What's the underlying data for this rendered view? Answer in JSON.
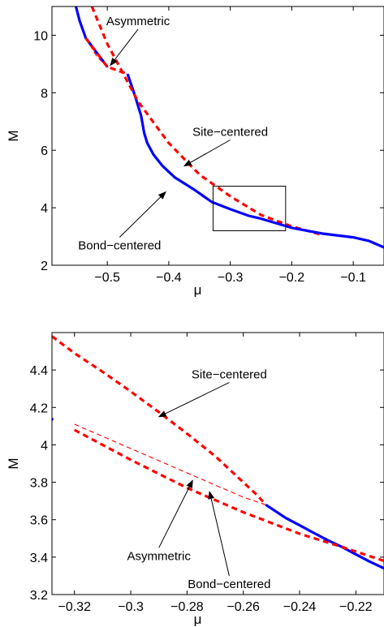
{
  "colors": {
    "stable": "#0000ff",
    "unstable": "#ff0000",
    "axis": "#000000",
    "background": "#ffffff"
  },
  "chart_data": [
    {
      "type": "line",
      "xlabel": "μ",
      "ylabel": "M",
      "xlim": [
        -0.59,
        -0.05
      ],
      "ylim": [
        2,
        11
      ],
      "xticks": [
        -0.5,
        -0.4,
        -0.3,
        -0.2,
        -0.1
      ],
      "xtick_labels": [
        "−0.5",
        "−0.4",
        "−0.3",
        "−0.2",
        "−0.1"
      ],
      "yticks": [
        2,
        4,
        6,
        8,
        10
      ],
      "ytick_labels": [
        "2",
        "4",
        "6",
        "8",
        "10"
      ],
      "grid": false,
      "inset_box": {
        "x": [
          -0.328,
          -0.21
        ],
        "y": [
          3.2,
          4.75
        ]
      },
      "series": [
        {
          "style": "solid-blue",
          "x": [
            -0.551,
            -0.545,
            -0.535,
            -0.5
          ],
          "y": [
            11.0,
            10.5,
            9.9,
            8.9
          ]
        },
        {
          "style": "dashed-red",
          "x": [
            -0.535,
            -0.5,
            -0.467
          ],
          "y": [
            9.9,
            8.9,
            8.65
          ]
        },
        {
          "style": "thin-dashed-red",
          "x": [
            -0.535,
            -0.517,
            -0.5,
            -0.483,
            -0.467
          ],
          "y": [
            9.9,
            9.25,
            8.9,
            8.75,
            8.65
          ]
        },
        {
          "style": "solid-blue",
          "x": [
            -0.467,
            -0.455,
            -0.445,
            -0.44,
            -0.435,
            -0.425,
            -0.41,
            -0.39,
            -0.36,
            -0.33,
            -0.3,
            -0.27,
            -0.25
          ],
          "y": [
            8.65,
            7.9,
            7.2,
            6.6,
            6.25,
            5.85,
            5.45,
            5.05,
            4.65,
            4.2,
            3.95,
            3.72,
            3.62
          ]
        },
        {
          "style": "dashed-red",
          "x": [
            -0.525,
            -0.5,
            -0.45,
            -0.4,
            -0.35,
            -0.3,
            -0.25,
            -0.2,
            -0.15
          ],
          "y": [
            11.0,
            9.7,
            7.7,
            6.25,
            5.15,
            4.4,
            3.75,
            3.35,
            3.05
          ]
        },
        {
          "style": "solid-blue",
          "x": [
            -0.25,
            -0.2,
            -0.15,
            -0.1,
            -0.075,
            -0.05
          ],
          "y": [
            3.62,
            3.3,
            3.1,
            2.97,
            2.85,
            2.62
          ]
        }
      ],
      "annotations": [
        {
          "text": "Asymmetric",
          "x": -0.45,
          "y": 10.35,
          "arrow_to": [
            -0.495,
            8.95
          ]
        },
        {
          "text": "Site−centered",
          "x": -0.3,
          "y": 6.5,
          "arrow_to": [
            -0.375,
            5.45
          ]
        },
        {
          "text": "Bond−centered",
          "x": -0.48,
          "y": 2.55,
          "arrow_to": [
            -0.405,
            4.55
          ]
        }
      ]
    },
    {
      "type": "line",
      "xlabel": "μ",
      "ylabel": "M",
      "xlim": [
        -0.328,
        -0.21
      ],
      "ylim": [
        3.2,
        4.6
      ],
      "xticks": [
        -0.32,
        -0.3,
        -0.28,
        -0.26,
        -0.24,
        -0.22
      ],
      "xtick_labels": [
        "−0.32",
        "−0.3",
        "−0.28",
        "−0.26",
        "−0.24",
        "−0.22"
      ],
      "yticks": [
        3.2,
        3.4,
        3.6,
        3.8,
        4,
        4.2,
        4.4
      ],
      "ytick_labels": [
        "3.2",
        "3.4",
        "3.6",
        "3.8",
        "4",
        "4.2",
        "4.4"
      ],
      "grid": false,
      "series": [
        {
          "style": "dashed-red",
          "x": [
            -0.328,
            -0.32,
            -0.31,
            -0.3,
            -0.29,
            -0.28,
            -0.27,
            -0.26,
            -0.255,
            -0.252
          ],
          "y": [
            4.58,
            4.49,
            4.39,
            4.285,
            4.175,
            4.06,
            3.94,
            3.8,
            3.73,
            3.68
          ]
        },
        {
          "style": "thin-dashed-red",
          "x": [
            -0.32,
            -0.3,
            -0.28,
            -0.26,
            -0.252
          ],
          "y": [
            4.11,
            3.98,
            3.85,
            3.72,
            3.68
          ]
        },
        {
          "style": "solid-blue",
          "x": [
            -0.252,
            -0.245,
            -0.24,
            -0.235,
            -0.23,
            -0.225,
            -0.22,
            -0.215,
            -0.21
          ],
          "y": [
            3.68,
            3.61,
            3.57,
            3.53,
            3.49,
            3.455,
            3.415,
            3.375,
            3.34
          ]
        },
        {
          "style": "dashed-red",
          "x": [
            -0.32,
            -0.3,
            -0.28,
            -0.26,
            -0.24,
            -0.225,
            -0.21
          ],
          "y": [
            4.08,
            3.92,
            3.77,
            3.64,
            3.525,
            3.455,
            3.38
          ]
        },
        {
          "style": "solid-blue",
          "x": [
            -0.3285,
            -0.3275
          ],
          "y": [
            4.14,
            4.135
          ]
        }
      ],
      "annotations": [
        {
          "text": "Site−centered",
          "x": -0.265,
          "y": 4.355,
          "arrow_to": [
            -0.29,
            4.15
          ]
        },
        {
          "text": "Asymmetric",
          "x": -0.29,
          "y": 3.385,
          "arrow_to": [
            -0.278,
            3.81
          ]
        },
        {
          "text": "Bond−centered",
          "x": -0.265,
          "y": 3.235,
          "arrow_to": [
            -0.272,
            3.75
          ]
        }
      ]
    }
  ]
}
